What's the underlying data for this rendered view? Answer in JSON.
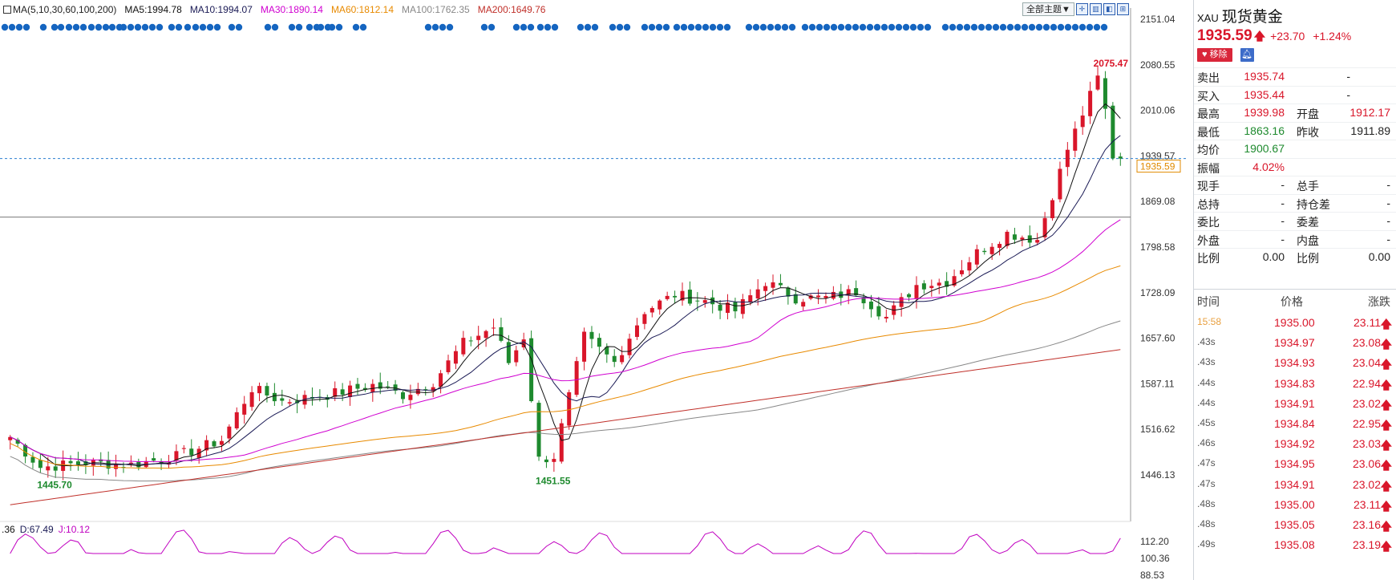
{
  "colors": {
    "up": "#d9162a",
    "down": "#1e8a2e",
    "ma5": "#111111",
    "ma10": "#1a1a55",
    "ma30": "#d000d0",
    "ma60": "#e88a00",
    "ma100": "#888888",
    "ma200": "#c0302a",
    "dots": "#1565c0",
    "j_line": "#c000c0"
  },
  "legend": {
    "ma_params": "MA(5,10,30,60,100,200)",
    "ma5": "MA5:1994.78",
    "ma10": "MA10:1994.07",
    "ma30": "MA30:1890.14",
    "ma60": "MA60:1812.14",
    "ma100": "MA100:1762.35",
    "ma200": "MA200:1649.76"
  },
  "toolbar": {
    "theme_label": "全部主题▼"
  },
  "kdj_legend": {
    "k": ".36",
    "d": "D:67.49",
    "j": "J:10.12"
  },
  "chart_data": {
    "type": "candlestick",
    "price_axis_ticks": [
      "2151.04",
      "2080.55",
      "2010.06",
      "1939.57",
      "1869.08",
      "1798.58",
      "1728.09",
      "1657.60",
      "1587.11",
      "1516.62",
      "1446.13"
    ],
    "price_axis_range": [
      1446.13,
      2151.04
    ],
    "current_price_label": "1935.59",
    "current_price": 1935.59,
    "reference_line": 1845,
    "annotations": [
      {
        "text": "2075.47",
        "value": 2075.47,
        "index": 143
      },
      {
        "text": "1451.55",
        "value": 1451.55,
        "index": 70
      },
      {
        "text": "1445.70",
        "value": 1445.7,
        "index": 4
      }
    ],
    "indicator_axis_ticks": [
      "112.20",
      "100.36",
      "88.53"
    ],
    "closes_anchor": [
      [
        0,
        1505
      ],
      [
        4,
        1458
      ],
      [
        10,
        1465
      ],
      [
        16,
        1462
      ],
      [
        22,
        1475
      ],
      [
        28,
        1500
      ],
      [
        32,
        1580
      ],
      [
        36,
        1560
      ],
      [
        42,
        1570
      ],
      [
        48,
        1585
      ],
      [
        52,
        1570
      ],
      [
        56,
        1590
      ],
      [
        60,
        1650
      ],
      [
        64,
        1675
      ],
      [
        66,
        1620
      ],
      [
        68,
        1660
      ],
      [
        70,
        1470
      ],
      [
        72,
        1475
      ],
      [
        76,
        1660
      ],
      [
        80,
        1620
      ],
      [
        84,
        1700
      ],
      [
        88,
        1725
      ],
      [
        92,
        1715
      ],
      [
        96,
        1700
      ],
      [
        100,
        1745
      ],
      [
        104,
        1720
      ],
      [
        108,
        1720
      ],
      [
        112,
        1730
      ],
      [
        116,
        1690
      ],
      [
        120,
        1740
      ],
      [
        124,
        1745
      ],
      [
        128,
        1790
      ],
      [
        132,
        1820
      ],
      [
        136,
        1810
      ],
      [
        140,
        1950
      ],
      [
        144,
        2060
      ],
      [
        145,
        2010
      ],
      [
        146,
        1940
      ],
      [
        147,
        1935.59
      ]
    ]
  },
  "quote": {
    "code": "XAU",
    "name": "现货黄金",
    "price": "1935.59",
    "arrow": "🡅",
    "change": "+23.70",
    "change_pct": "+1.24%",
    "remove_label": "移除",
    "rows": [
      {
        "l1": "卖出",
        "v1": "1935.74",
        "c1": "up",
        "l2": "",
        "v2": "-",
        "c2": ""
      },
      {
        "l1": "买入",
        "v1": "1935.44",
        "c1": "up",
        "l2": "",
        "v2": "-",
        "c2": ""
      },
      {
        "l1": "最高",
        "v1": "1939.98",
        "c1": "up",
        "l2": "开盘",
        "v2": "1912.17",
        "c2": "up"
      },
      {
        "l1": "最低",
        "v1": "1863.16",
        "c1": "down",
        "l2": "昨收",
        "v2": "1911.89",
        "c2": ""
      },
      {
        "l1": "均价",
        "v1": "1900.67",
        "c1": "down",
        "l2": "",
        "v2": "",
        "c2": ""
      },
      {
        "l1": "振幅",
        "v1": "4.02%",
        "c1": "up",
        "l2": "",
        "v2": "",
        "c2": ""
      },
      {
        "l1": "现手",
        "v1": "-",
        "c1": "",
        "l2": "总手",
        "v2": "-",
        "c2": ""
      },
      {
        "l1": "总持",
        "v1": "-",
        "c1": "",
        "l2": "持仓差",
        "v2": "-",
        "c2": ""
      },
      {
        "l1": "委比",
        "v1": "-",
        "c1": "",
        "l2": "委差",
        "v2": "-",
        "c2": ""
      },
      {
        "l1": "外盘",
        "v1": "-",
        "c1": "",
        "l2": "内盘",
        "v2": "-",
        "c2": ""
      },
      {
        "l1": "比例",
        "v1": "0.00",
        "c1": "",
        "l2": "比例",
        "v2": "0.00",
        "c2": ""
      }
    ],
    "ticks_header": {
      "time": "时间",
      "price": "价格",
      "change": "涨跌"
    },
    "ticks": [
      {
        "time": "15:58",
        "price": "1935.00",
        "change": "23.11"
      },
      {
        "time": ".43s",
        "price": "1934.97",
        "change": "23.08"
      },
      {
        "time": ".43s",
        "price": "1934.93",
        "change": "23.04"
      },
      {
        "time": ".44s",
        "price": "1934.83",
        "change": "22.94"
      },
      {
        "time": ".44s",
        "price": "1934.91",
        "change": "23.02"
      },
      {
        "time": ".45s",
        "price": "1934.84",
        "change": "22.95"
      },
      {
        "time": ".46s",
        "price": "1934.92",
        "change": "23.03"
      },
      {
        "time": ".47s",
        "price": "1934.95",
        "change": "23.06"
      },
      {
        "time": ".47s",
        "price": "1934.91",
        "change": "23.02"
      },
      {
        "time": ".48s",
        "price": "1935.00",
        "change": "23.11"
      },
      {
        "time": ".48s",
        "price": "1935.05",
        "change": "23.16"
      },
      {
        "time": ".49s",
        "price": "1935.08",
        "change": "23.19"
      }
    ]
  }
}
